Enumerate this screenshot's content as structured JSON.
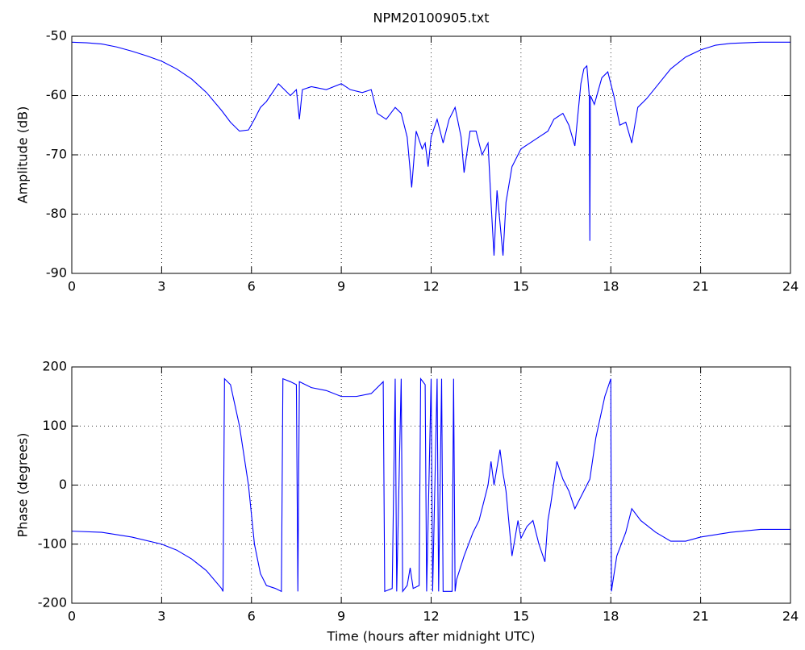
{
  "chart_data": [
    {
      "type": "line",
      "title": "NPM20100905.txt",
      "ylabel": "Amplitude (dB)",
      "grid": true,
      "color": "#0000ff",
      "xlim": [
        0,
        24
      ],
      "xticks": [
        0,
        3,
        6,
        9,
        12,
        15,
        18,
        21,
        24
      ],
      "ylim": [
        -90,
        -50
      ],
      "yticks": [
        -90,
        -80,
        -70,
        -60,
        -50
      ],
      "x": [
        0,
        0.5,
        1,
        1.5,
        2,
        2.5,
        3,
        3.5,
        4,
        4.5,
        5,
        5.3,
        5.6,
        5.9,
        6.1,
        6.3,
        6.5,
        6.7,
        6.9,
        7.1,
        7.3,
        7.5,
        7.6,
        7.7,
        8,
        8.5,
        9,
        9.3,
        9.7,
        10,
        10.2,
        10.5,
        10.8,
        11,
        11.2,
        11.35,
        11.5,
        11.7,
        11.8,
        11.9,
        12,
        12.2,
        12.4,
        12.6,
        12.8,
        13,
        13.1,
        13.3,
        13.5,
        13.7,
        13.9,
        14,
        14.1,
        14.2,
        14.4,
        14.5,
        14.7,
        15,
        15.3,
        15.6,
        15.9,
        16.1,
        16.4,
        16.6,
        16.8,
        17,
        17.1,
        17.2,
        17.28,
        17.3,
        17.32,
        17.45,
        17.7,
        17.9,
        18.1,
        18.3,
        18.5,
        18.7,
        18.9,
        19.2,
        19.6,
        20,
        20.5,
        21,
        21.5,
        22,
        23,
        24
      ],
      "values": [
        -51,
        -51.1,
        -51.3,
        -51.8,
        -52.5,
        -53.3,
        -54.2,
        -55.5,
        -57.2,
        -59.5,
        -62.5,
        -64.5,
        -66,
        -65.8,
        -64,
        -62,
        -61,
        -59.5,
        -58,
        -59,
        -60,
        -59,
        -64,
        -59,
        -58.5,
        -59,
        -58,
        -59,
        -59.5,
        -59,
        -63,
        -64,
        -62,
        -63,
        -67,
        -75.5,
        -66,
        -69,
        -68,
        -72,
        -67,
        -64,
        -68,
        -64,
        -62,
        -67,
        -73,
        -66,
        -66,
        -70,
        -68,
        -78,
        -87,
        -76,
        -87,
        -78,
        -72,
        -69,
        -68,
        -67,
        -66,
        -64,
        -63,
        -65,
        -68.5,
        -58,
        -55.5,
        -55,
        -60,
        -84.5,
        -60,
        -61.5,
        -57,
        -56,
        -60,
        -65,
        -64.5,
        -68,
        -62,
        -60.5,
        -58,
        -55.5,
        -53.5,
        -52.3,
        -51.5,
        -51.2,
        -51,
        -51
      ]
    },
    {
      "type": "line",
      "ylabel": "Phase (degrees)",
      "xlabel": "Time (hours after midnight UTC)",
      "grid": true,
      "color": "#0000ff",
      "xlim": [
        0,
        24
      ],
      "xticks": [
        0,
        3,
        6,
        9,
        12,
        15,
        18,
        21,
        24
      ],
      "ylim": [
        -200,
        200
      ],
      "yticks": [
        -200,
        -100,
        0,
        100,
        200
      ],
      "x": [
        0,
        1,
        2,
        3,
        3.5,
        4,
        4.5,
        5,
        5.05,
        5.1,
        5.3,
        5.6,
        5.9,
        6.1,
        6.3,
        6.5,
        6.8,
        7,
        7.05,
        7.3,
        7.5,
        7.55,
        7.6,
        8,
        8.5,
        9,
        9.5,
        10,
        10.4,
        10.45,
        10.7,
        10.8,
        10.85,
        11,
        11.05,
        11.2,
        11.3,
        11.4,
        11.6,
        11.65,
        11.8,
        11.85,
        12,
        12.05,
        12.2,
        12.25,
        12.35,
        12.4,
        12.7,
        12.75,
        12.8,
        12.85,
        13.1,
        13.4,
        13.6,
        13.9,
        14,
        14.1,
        14.3,
        14.4,
        14.5,
        14.7,
        14.9,
        15,
        15.2,
        15.4,
        15.6,
        15.8,
        15.9,
        16,
        16.2,
        16.4,
        16.6,
        16.8,
        17,
        17.3,
        17.5,
        17.8,
        18,
        18.02,
        18.2,
        18.5,
        18.7,
        19,
        19.5,
        20,
        20.5,
        21,
        22,
        23,
        24
      ],
      "values": [
        -78,
        -80,
        -88,
        -100,
        -110,
        -125,
        -145,
        -175,
        -180,
        180,
        170,
        100,
        0,
        -100,
        -150,
        -170,
        -175,
        -180,
        180,
        175,
        170,
        -180,
        175,
        165,
        160,
        150,
        150,
        155,
        175,
        -180,
        -175,
        180,
        -180,
        180,
        -180,
        -170,
        -140,
        -175,
        -170,
        180,
        170,
        -180,
        180,
        -180,
        180,
        -180,
        180,
        -180,
        -180,
        180,
        -180,
        -160,
        -120,
        -80,
        -60,
        0,
        40,
        0,
        60,
        20,
        -10,
        -120,
        -60,
        -90,
        -70,
        -60,
        -100,
        -130,
        -60,
        -30,
        40,
        10,
        -10,
        -40,
        -20,
        10,
        80,
        150,
        180,
        -180,
        -120,
        -80,
        -40,
        -60,
        -80,
        -95,
        -95,
        -88,
        -80,
        -75,
        -75
      ]
    }
  ]
}
